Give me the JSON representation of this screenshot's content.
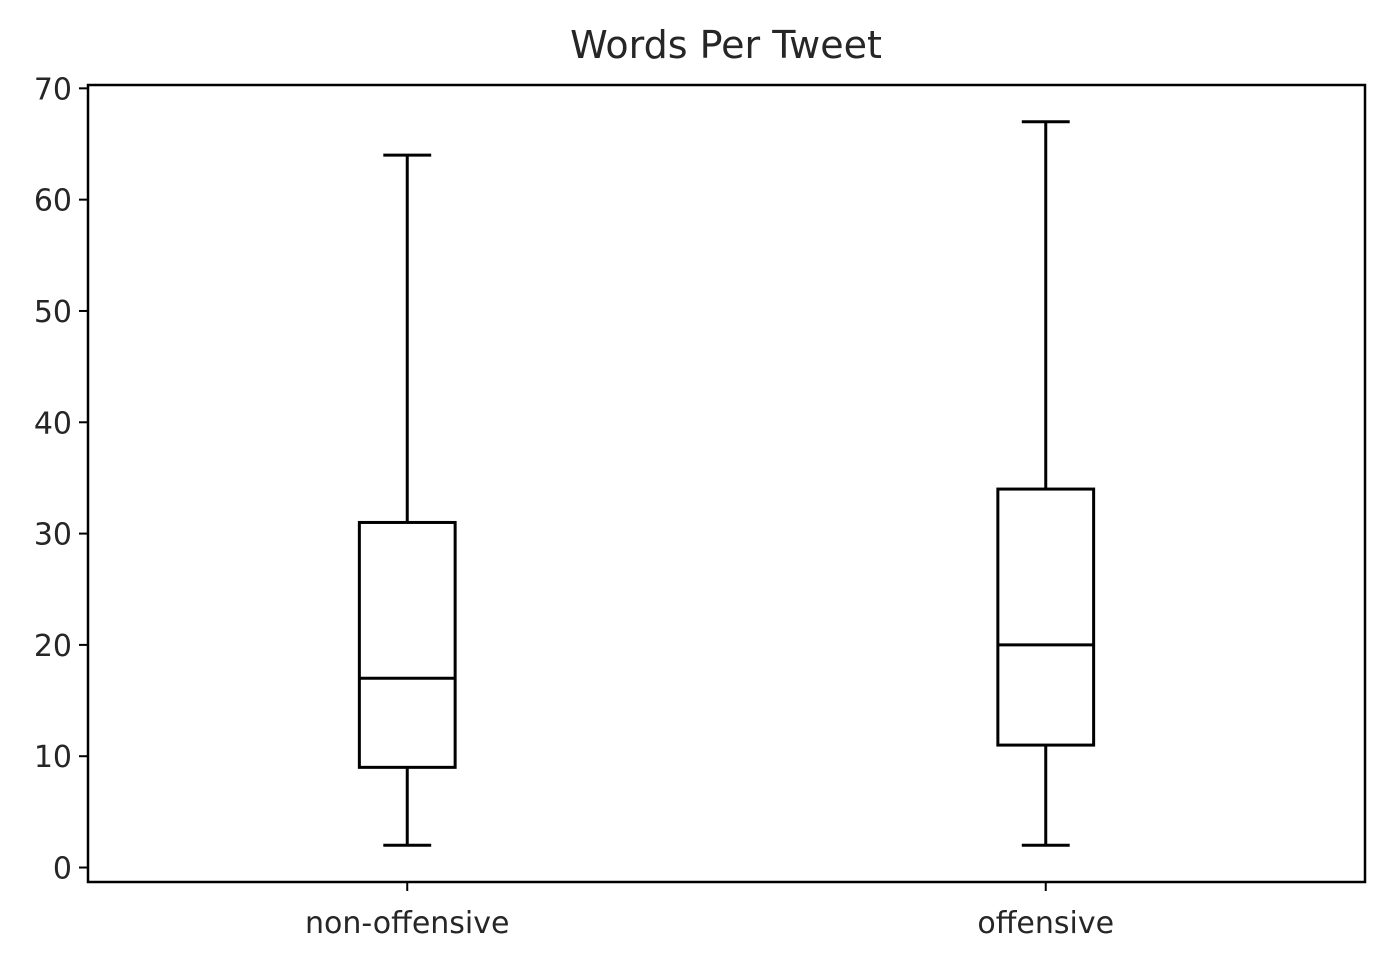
{
  "chart_data": {
    "type": "box",
    "title": "Words Per Tweet",
    "xlabel": "",
    "ylabel": "",
    "ylim": [
      -1.3,
      70.3
    ],
    "yticks": [
      0,
      10,
      20,
      30,
      40,
      50,
      60,
      70
    ],
    "grid": false,
    "categories": [
      "non-offensive",
      "offensive"
    ],
    "boxes": [
      {
        "category": "non-offensive",
        "whislo": 2,
        "q1": 9,
        "median": 17,
        "q3": 31,
        "whishi": 64
      },
      {
        "category": "offensive",
        "whislo": 2,
        "q1": 11,
        "median": 20,
        "q3": 34,
        "whishi": 67
      }
    ]
  }
}
